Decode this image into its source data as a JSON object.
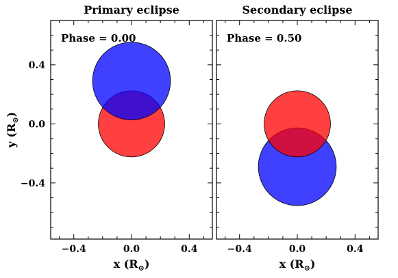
{
  "panels": [
    {
      "title": "Primary eclipse",
      "phase_label": "Phase = 0.00",
      "stars": [
        {
          "name": "red-star",
          "x": 0.0,
          "y": 0.0,
          "r": 0.23,
          "color": "#ff0000",
          "opacity": 0.75
        },
        {
          "name": "blue-star",
          "x": 0.0,
          "y": 0.29,
          "r": 0.27,
          "color": "#0000ff",
          "opacity": 0.75
        }
      ]
    },
    {
      "title": "Secondary eclipse",
      "phase_label": "Phase = 0.50",
      "stars": [
        {
          "name": "blue-star",
          "x": 0.0,
          "y": -0.29,
          "r": 0.27,
          "color": "#0000ff",
          "opacity": 0.75
        },
        {
          "name": "red-star",
          "x": 0.0,
          "y": 0.0,
          "r": 0.23,
          "color": "#ff0000",
          "opacity": 0.75
        }
      ]
    }
  ],
  "axes": {
    "xlim": [
      -0.56,
      0.56
    ],
    "ylim": [
      -0.78,
      0.7
    ],
    "x_ticks": [
      -0.4,
      0.0,
      0.4
    ],
    "x_tick_labels": [
      "−0.4",
      "0.0",
      "0.4"
    ],
    "y_ticks": [
      -0.4,
      0.0,
      0.4
    ],
    "y_tick_labels": [
      "−0.4",
      "0.0",
      "0.4"
    ],
    "xlabel_text": "x (R",
    "ylabel_text": "y (R",
    "sun_symbol": "⊙",
    "label_close": ")"
  }
}
